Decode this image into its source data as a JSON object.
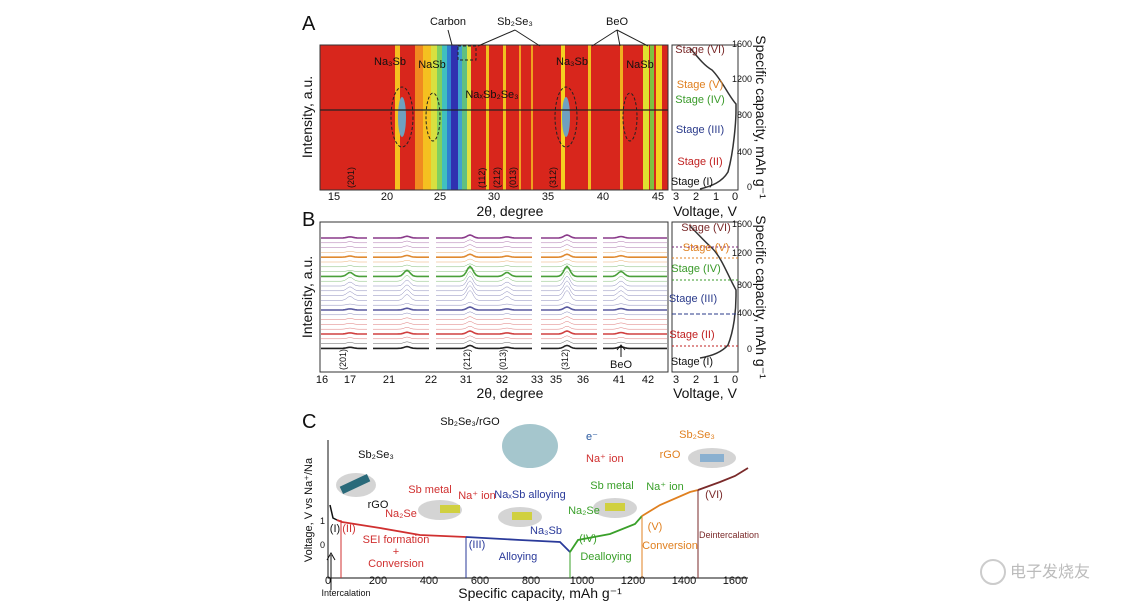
{
  "panel_a": {
    "label": "A",
    "annotations": [
      "Carbon",
      "Sb₂Se₃",
      "BeO",
      "Na₃Sb",
      "NaSb",
      "NaₓSb₂Se₃",
      "Na₃Sb",
      "NaSb"
    ],
    "indices": [
      "(201)",
      "(112)",
      "(212)",
      "(013)",
      "(312)"
    ],
    "x_ticks": [
      15,
      20,
      25,
      30,
      35,
      40,
      45
    ],
    "x_label": "2θ, degree",
    "y_label": "Intensity, a.u.",
    "stages": [
      "Stage (VI)",
      "Stage (V)",
      "Stage (IV)",
      "Stage (III)",
      "Stage (II)",
      "Stage (I)"
    ],
    "voltage_ticks": [
      3,
      2,
      1,
      0
    ],
    "voltage_label": "Voltage, V",
    "capacity_ticks": [
      0,
      400,
      800,
      1200,
      1600
    ],
    "capacity_label": "Specific capacity, mAh g⁻¹"
  },
  "panel_b": {
    "label": "B",
    "annotations": [
      "BeO"
    ],
    "indices": [
      "(201)",
      "(212)",
      "(013)",
      "(312)"
    ],
    "x_ticks": [
      16,
      17,
      21,
      22,
      31,
      32,
      33,
      35,
      36,
      41,
      42
    ],
    "x_label": "2θ, degree",
    "y_label": "Intensity, a.u.",
    "stages": [
      "Stage (VI)",
      "Stage (V)",
      "Stage (IV)",
      "Stage (III)",
      "Stage (II)",
      "Stage (I)"
    ],
    "voltage_ticks": [
      3,
      2,
      1,
      0
    ],
    "voltage_label": "Voltage, V",
    "capacity_ticks": [
      0,
      400,
      800,
      1200,
      1600
    ],
    "capacity_label": "Specific capacity, mAh g⁻¹"
  },
  "panel_c": {
    "label": "C",
    "title": "Sb₂Se₃/rGO",
    "x_ticks": [
      0,
      200,
      400,
      600,
      800,
      1000,
      1200,
      1400,
      1600
    ],
    "y_ticks": [
      0,
      1
    ],
    "x_label": "Specific capacity, mAh g⁻¹",
    "y_label": "Voltage, V vs Na⁺/Na",
    "stages": [
      "(I)",
      "(II)",
      "(III)",
      "(IV)",
      "(V)",
      "(VI)"
    ],
    "processes": [
      "Intercalation",
      "SEI formation",
      "+",
      "Conversion",
      "Alloying",
      "Dealloying",
      "Conversion",
      "Deintercalation"
    ],
    "labels": [
      "Sb₂Se₃",
      "rGO",
      "e⁻",
      "Na⁺ ion",
      "Sb metal",
      "Na⁺ ion",
      "Na₂Se",
      "NaₓSb alloying",
      "Na₃Sb",
      "Sb metal",
      "Na⁺ ion",
      "Na₂Se",
      "Sb₂Se₃",
      "rGO"
    ]
  },
  "watermark": "电子发烧友"
}
